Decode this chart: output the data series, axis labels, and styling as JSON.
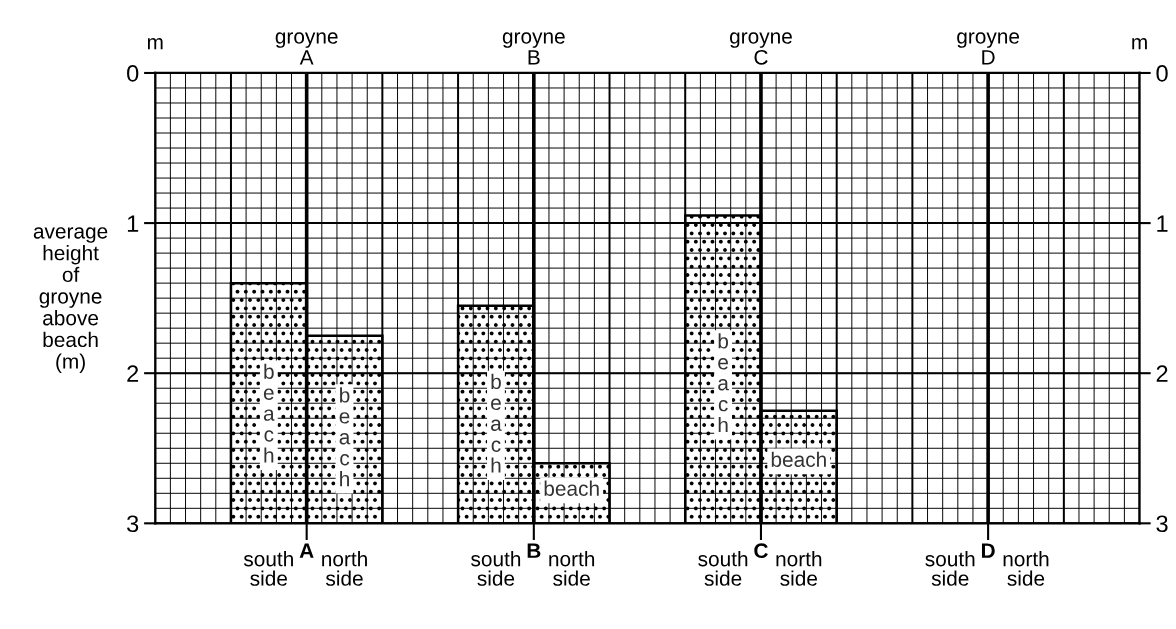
{
  "chart_data": {
    "type": "bar",
    "ylabel": "average\nheight\nof\ngroyne\nabove\nbeach\n(m)",
    "categories": [
      "A",
      "B",
      "C",
      "D"
    ],
    "series": [
      {
        "color": "#000000",
        "base": [
          1.4,
          1.55,
          0.95,
          null
        ],
        "values": [
          1.6,
          1.45,
          2.05,
          null
        ],
        "value_labels": [
          "beach",
          "beach",
          "beach",
          null
        ]
      },
      {
        "color": "#000000",
        "base": [
          1.75,
          2.6,
          2.25,
          null
        ],
        "values": [
          1.25,
          0.4,
          0.75,
          null
        ],
        "value_labels": [
          "beach",
          "beach",
          "beach",
          null
        ]
      }
    ],
    "ylim": [
      3,
      0
    ],
    "yticks": [
      0,
      1,
      2,
      3
    ],
    "y2lim": [
      3,
      0
    ],
    "y2ticks": [
      0,
      1,
      2,
      3
    ],
    "grid": true,
    "annotations": [
      "m",
      "m",
      "groyne\nA",
      "groyne\nB",
      "groyne\nC",
      "groyne\nD",
      "south\nside",
      "north\nside",
      "south\nside",
      "north\nside",
      "south\nside",
      "north\nside",
      "south\nside",
      "north\nside"
    ]
  }
}
